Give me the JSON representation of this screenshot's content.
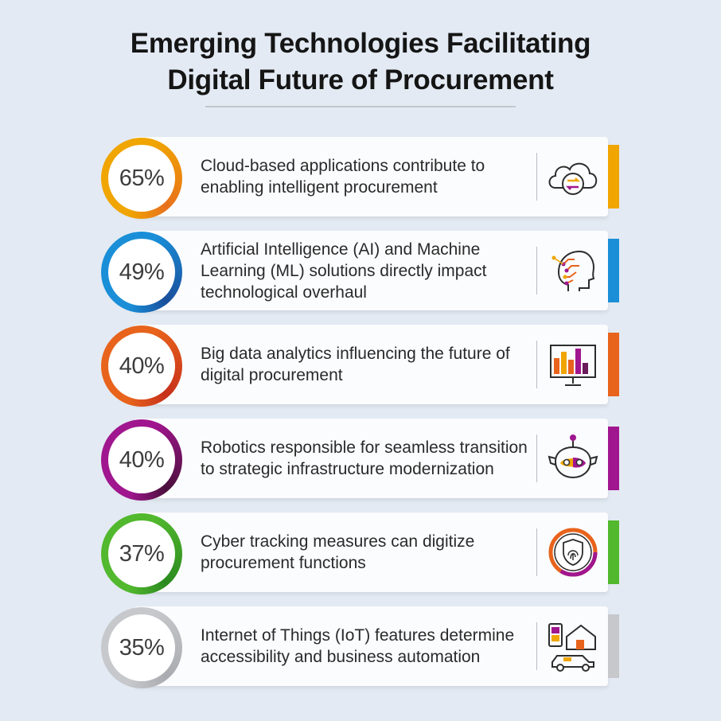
{
  "title": {
    "line1": "Emerging Technologies Facilitating",
    "line2": "Digital Future of Procurement"
  },
  "items": [
    {
      "percent": "65%",
      "value": 65,
      "text": "Cloud-based applications contribute to enabling intelligent procurement",
      "icon": "cloud-icon",
      "color": "#f0a500",
      "color_dark": "#e8711c"
    },
    {
      "percent": "49%",
      "value": 49,
      "text": "Artificial Intelligence (AI) and Machine Learning (ML) solutions directly impact technological overhaul",
      "icon": "ai-head-icon",
      "color": "#1a8fd8",
      "color_dark": "#1a4f9c"
    },
    {
      "percent": "40%",
      "value": 40,
      "text": "Big data analytics influencing the future of digital procurement",
      "icon": "analytics-monitor-icon",
      "color": "#e8631c",
      "color_dark": "#c7301a"
    },
    {
      "percent": "40%",
      "value": 40,
      "text": "Robotics responsible for seamless transition to strategic infrastructure modernization",
      "icon": "robot-icon",
      "color": "#a0168e",
      "color_dark": "#4a0f3c"
    },
    {
      "percent": "37%",
      "value": 37,
      "text": "Cyber tracking measures can digitize procurement functions",
      "icon": "fingerprint-shield-icon",
      "color": "#52b82e",
      "color_dark": "#2b8a1f"
    },
    {
      "percent": "35%",
      "value": 35,
      "text": "Internet of Things (IoT) features determine accessibility and business automation",
      "icon": "iot-home-icon",
      "color": "#c6c8cc",
      "color_dark": "#a9abb0"
    }
  ]
}
